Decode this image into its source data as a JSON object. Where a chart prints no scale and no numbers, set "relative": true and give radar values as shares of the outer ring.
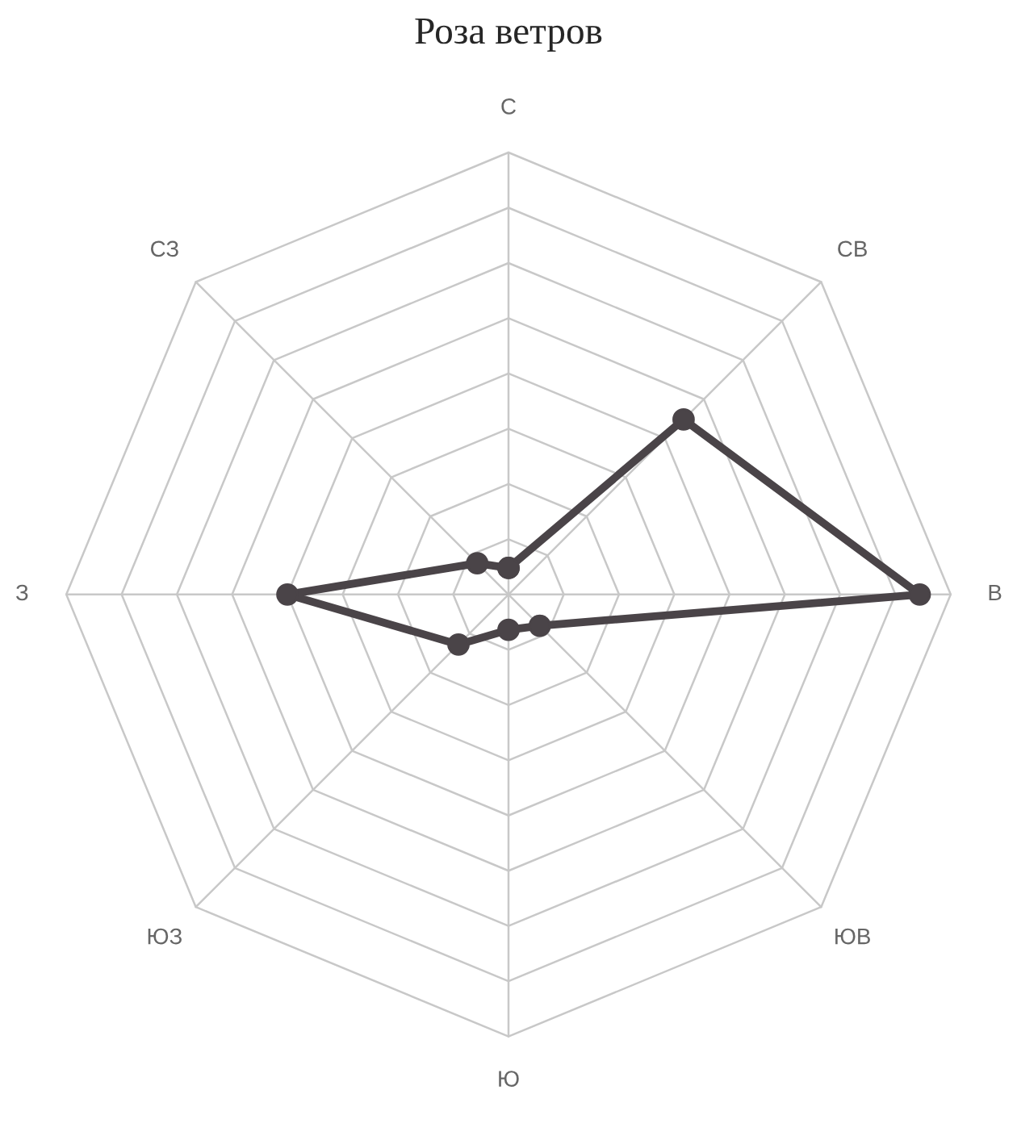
{
  "chart_data": {
    "type": "radar",
    "title": "Роза ветров",
    "relative": true,
    "categories": [
      "С",
      "СВ",
      "В",
      "ЮВ",
      "Ю",
      "ЮЗ",
      "З",
      "СЗ"
    ],
    "series": [
      {
        "color": "#4a4448",
        "values": [
          0.06,
          0.56,
          0.93,
          0.1,
          0.08,
          0.16,
          0.5,
          0.1
        ]
      }
    ],
    "grid": true,
    "marker": "circle",
    "line_style": "solid"
  }
}
